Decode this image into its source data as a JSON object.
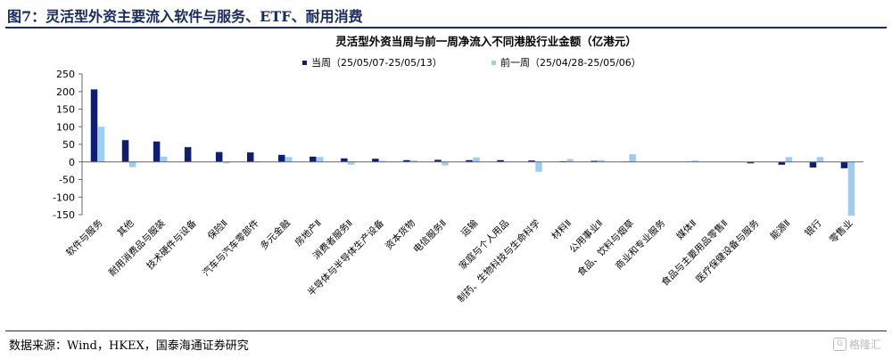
{
  "figure": {
    "title": "图7：灵活型外资主要流入软件与服务、ETF、耐用消费",
    "source": "数据来源：Wind，HKEX，国泰海通证券研究",
    "watermark": {
      "badge": "G",
      "text": "格隆汇"
    }
  },
  "colors": {
    "current": "#0d1f6e",
    "previous": "#9fcdf2",
    "axis": "#666666"
  },
  "chart_data": {
    "type": "bar",
    "title": "灵活型外资当周与前一周净流入不同港股行业金额（亿港元）",
    "xlabel": "",
    "ylabel": "",
    "ylim": [
      -150,
      250
    ],
    "yticks": [
      250,
      200,
      150,
      100,
      50,
      0,
      -50,
      -100,
      -150
    ],
    "grid": false,
    "legend_position": "top",
    "categories": [
      "软件与服务",
      "其他",
      "耐用消费品与服装",
      "技术硬件与设备",
      "保险Ⅱ",
      "汽车与汽车零部件",
      "多元金融",
      "房地产Ⅱ",
      "消费者服务Ⅱ",
      "半导体与半导体生产设备",
      "资本货物",
      "电信服务Ⅱ",
      "运输",
      "家庭与个人用品",
      "制药、生物科技与生命科学",
      "材料Ⅱ",
      "公用事业Ⅱ",
      "食品、饮料与烟草",
      "商业和专业服务",
      "媒体Ⅱ",
      "食品与主要用品零售Ⅱ",
      "医疗保健设备与服务",
      "能源Ⅱ",
      "银行",
      "零售业"
    ],
    "series": [
      {
        "name": "当周（25/05/07-25/05/13）",
        "values": [
          206,
          62,
          58,
          42,
          28,
          27,
          20,
          15,
          10,
          9,
          5,
          6,
          5,
          5,
          4,
          2,
          3,
          1,
          0,
          1,
          0,
          -4,
          -8,
          -16,
          -18
        ]
      },
      {
        "name": "前一周（25/04/28-25/05/06）",
        "values": [
          100,
          -15,
          15,
          1,
          -4,
          2,
          14,
          14,
          -8,
          3,
          4,
          -10,
          13,
          1,
          -28,
          8,
          5,
          22,
          1,
          4,
          1,
          1,
          14,
          14,
          -153
        ]
      }
    ]
  }
}
